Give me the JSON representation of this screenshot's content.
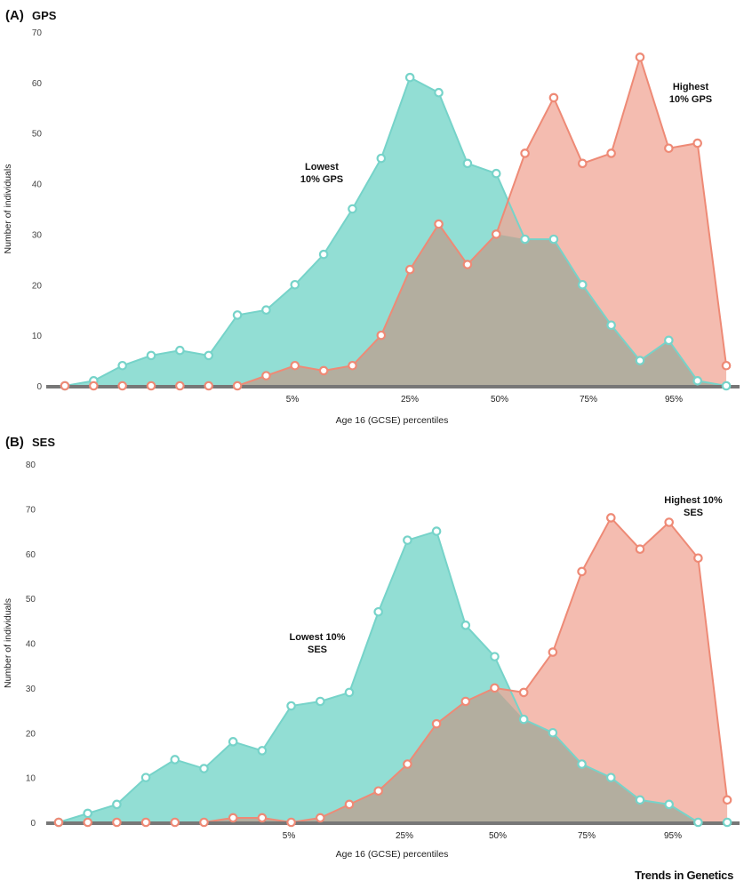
{
  "credit": "Trends in Genetics",
  "colors": {
    "lowest": "#7fd8cc",
    "highest": "#f0a696",
    "lowest_line": "#76d3c9",
    "highest_line": "#ee8a76",
    "overlap": "#b3ae9f",
    "baseline": "#777777"
  },
  "chart_data": [
    {
      "type": "area",
      "panel_letter": "(A)",
      "panel_title": "GPS",
      "xlabel": "Age 16 (GCSE) percentiles",
      "ylabel": "Number of individuals",
      "ylim": [
        0,
        70
      ],
      "yticks": [
        0,
        10,
        20,
        30,
        40,
        50,
        60,
        70
      ],
      "x_tick_labels": [
        "5%",
        "25%",
        "50%",
        "75%",
        "95%"
      ],
      "grid": false,
      "annotations": [
        {
          "series": "lowest",
          "lines": [
            "Lowest",
            "10% GPS"
          ]
        },
        {
          "series": "highest",
          "lines": [
            "Highest",
            "10% GPS"
          ]
        }
      ],
      "series": [
        {
          "key": "lowest",
          "values": [
            0,
            1,
            4,
            6,
            7,
            6,
            14,
            15,
            20,
            26,
            35,
            45,
            61,
            58,
            44,
            42,
            29,
            29,
            20,
            12,
            5,
            9,
            1,
            0
          ]
        },
        {
          "key": "highest",
          "values": [
            0,
            0,
            0,
            0,
            0,
            0,
            0,
            2,
            4,
            3,
            4,
            10,
            23,
            32,
            24,
            30,
            46,
            57,
            44,
            46,
            65,
            47,
            48,
            4
          ]
        }
      ]
    },
    {
      "type": "area",
      "panel_letter": "(B)",
      "panel_title": "SES",
      "xlabel": "Age 16 (GCSE) percentiles",
      "ylabel": "Number of individuals",
      "ylim": [
        0,
        80
      ],
      "yticks": [
        0,
        10,
        20,
        30,
        40,
        50,
        60,
        70,
        80
      ],
      "x_tick_labels": [
        "5%",
        "25%",
        "50%",
        "75%",
        "95%"
      ],
      "grid": false,
      "annotations": [
        {
          "series": "lowest",
          "lines": [
            "Lowest 10%",
            "SES"
          ]
        },
        {
          "series": "highest",
          "lines": [
            "Highest 10%",
            "SES"
          ]
        }
      ],
      "series": [
        {
          "key": "lowest",
          "values": [
            0,
            2,
            4,
            10,
            14,
            12,
            18,
            16,
            26,
            27,
            29,
            47,
            63,
            65,
            44,
            37,
            23,
            20,
            13,
            10,
            5,
            4,
            0,
            0
          ]
        },
        {
          "key": "highest",
          "values": [
            0,
            0,
            0,
            0,
            0,
            0,
            1,
            1,
            0,
            1,
            4,
            7,
            13,
            22,
            27,
            30,
            29,
            38,
            56,
            68,
            61,
            67,
            59,
            5
          ]
        }
      ]
    }
  ]
}
